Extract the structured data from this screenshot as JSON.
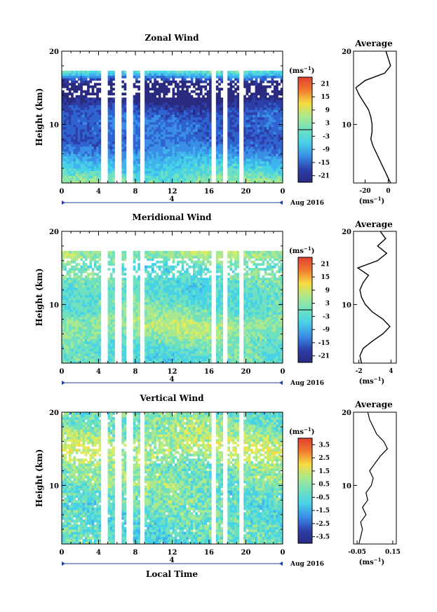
{
  "figure": {
    "xlabel": "Local Time",
    "date_label": "Aug 2016",
    "day_label": "4",
    "unit_label": "(ms",
    "unit_exp": "−1",
    "avg_title": "Average",
    "colors": {
      "scale": [
        "#2a2a80",
        "#2c3fa8",
        "#2f63d0",
        "#3a8ee6",
        "#3fb3ec",
        "#48d2e6",
        "#6fe0c0",
        "#a8e890",
        "#dcec60",
        "#f6dc40",
        "#f8b030",
        "#f07830",
        "#e04030"
      ],
      "missing": "#ffffff",
      "axis": "#000000",
      "date_bar": "#2040a0"
    }
  },
  "chart_data": [
    {
      "type": "heatmap",
      "title": "Zonal Wind",
      "ylabel": "Height (km)",
      "xlabel": "",
      "x_ticks": [
        "0",
        "4",
        "8",
        "12",
        "16",
        "20",
        "0"
      ],
      "y_ticks": [
        "10",
        "20"
      ],
      "xlim": [
        0,
        24
      ],
      "ylim": [
        2,
        20
      ],
      "colorbar_ticks": [
        "21",
        "15",
        "9",
        "3",
        "-3",
        "-9",
        "-15",
        "-21"
      ],
      "colorbar_range": [
        -24,
        24
      ],
      "missing_time_bands": [
        [
          4.3,
          4.9
        ],
        [
          5.8,
          6.4
        ],
        [
          7.1,
          7.7
        ],
        [
          8.6,
          9.1
        ],
        [
          16.2,
          16.7
        ],
        [
          17.5,
          17.9
        ],
        [
          19.3,
          19.7
        ]
      ],
      "average_profile": {
        "title": "Average",
        "xlabel": "(ms",
        "x_ticks": [
          "-20",
          "0"
        ],
        "xlim": [
          -30,
          7
        ],
        "y_ticks": [
          "10",
          "20"
        ],
        "height_km": [
          2,
          3,
          4,
          5,
          6,
          7,
          8,
          9,
          10,
          11,
          12,
          13,
          14,
          15,
          16,
          17,
          18,
          19,
          20
        ],
        "value_ms": [
          2,
          -1,
          -4,
          -7,
          -10,
          -13,
          -15,
          -14,
          -14,
          -15,
          -17,
          -21,
          -25,
          -28,
          -20,
          -3,
          2,
          0,
          -2
        ]
      }
    },
    {
      "type": "heatmap",
      "title": "Meridional Wind",
      "ylabel": "Height (km)",
      "xlabel": "",
      "x_ticks": [
        "0",
        "4",
        "8",
        "12",
        "16",
        "20",
        "0"
      ],
      "y_ticks": [
        "10",
        "20"
      ],
      "xlim": [
        0,
        24
      ],
      "ylim": [
        2,
        20
      ],
      "colorbar_ticks": [
        "21",
        "15",
        "9",
        "3",
        "-3",
        "-9",
        "-15",
        "-21"
      ],
      "colorbar_range": [
        -24,
        24
      ],
      "missing_time_bands": [
        [
          4.3,
          4.9
        ],
        [
          5.8,
          6.4
        ],
        [
          7.1,
          7.7
        ],
        [
          8.6,
          9.1
        ],
        [
          16.2,
          16.7
        ],
        [
          17.5,
          17.9
        ],
        [
          19.3,
          19.7
        ]
      ],
      "average_profile": {
        "title": "Average",
        "xlabel": "(ms",
        "x_ticks": [
          "-2",
          "4"
        ],
        "xlim": [
          -3,
          5
        ],
        "y_ticks": [
          "10",
          "20"
        ],
        "height_km": [
          2,
          3,
          4,
          5,
          6,
          7,
          8,
          9,
          10,
          11,
          12,
          13,
          14,
          15,
          16,
          17,
          18,
          19,
          20
        ],
        "value_ms": [
          -1.5,
          -1.8,
          -1.2,
          0.5,
          2.5,
          3.8,
          2.5,
          0.5,
          -0.8,
          -1.5,
          -1.8,
          -1.2,
          -0.2,
          -2.2,
          1.5,
          3.2,
          1.5,
          3.0,
          2.0
        ]
      }
    },
    {
      "type": "heatmap",
      "title": "Vertical Wind",
      "ylabel": "Height (km)",
      "xlabel": "Local Time",
      "x_ticks": [
        "0",
        "4",
        "8",
        "12",
        "16",
        "20",
        "0"
      ],
      "y_ticks": [
        "10",
        "20"
      ],
      "xlim": [
        0,
        24
      ],
      "ylim": [
        2,
        20
      ],
      "colorbar_ticks": [
        "3.5",
        "2.5",
        "1.5",
        "0.5",
        "-0.5",
        "-1.5",
        "-2.5",
        "-3.5"
      ],
      "colorbar_range": [
        -4,
        4
      ],
      "missing_time_bands": [
        [
          4.3,
          4.9
        ],
        [
          5.8,
          6.4
        ],
        [
          7.1,
          7.7
        ],
        [
          8.6,
          9.1
        ],
        [
          16.2,
          16.7
        ],
        [
          17.5,
          17.9
        ],
        [
          19.3,
          19.7
        ]
      ],
      "average_profile": {
        "title": "Average",
        "xlabel": "(ms",
        "x_ticks": [
          "-0.05",
          "0.15"
        ],
        "xlim": [
          -0.07,
          0.17
        ],
        "y_ticks": [
          "10",
          "20"
        ],
        "height_km": [
          2,
          3,
          4,
          5,
          6,
          7,
          8,
          9,
          10,
          11,
          12,
          13,
          14,
          15,
          16,
          17,
          18,
          19,
          20
        ],
        "value_ms": [
          -0.04,
          -0.03,
          -0.02,
          -0.03,
          0.0,
          -0.02,
          0.01,
          0.0,
          0.03,
          0.04,
          0.02,
          0.05,
          0.08,
          0.12,
          0.1,
          0.06,
          0.04,
          0.02,
          0.01
        ]
      }
    }
  ]
}
